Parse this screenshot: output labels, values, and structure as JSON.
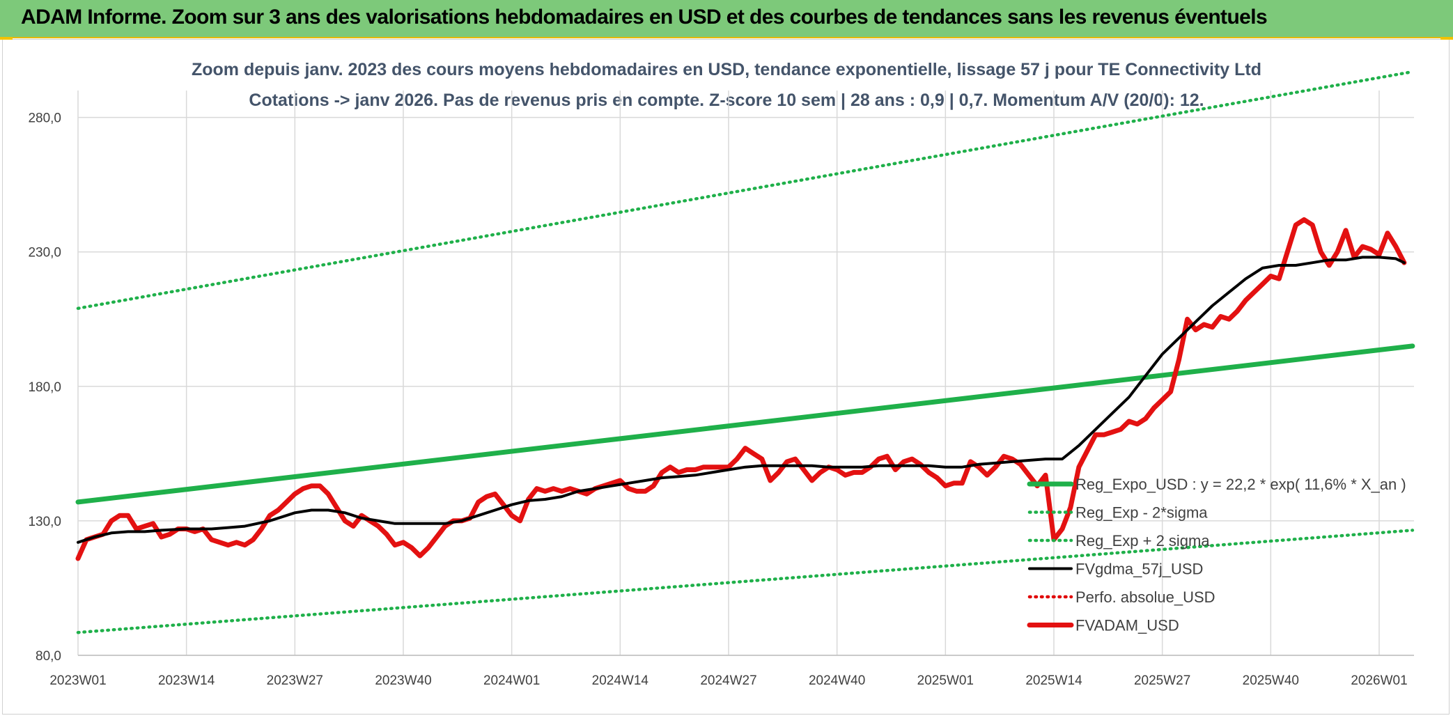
{
  "header": {
    "title": "ADAM Informe. Zoom sur 3 ans des valorisations hebdomadaires en USD et des courbes de tendances sans les revenus éventuels",
    "background": "#7dc97a"
  },
  "chart_data": {
    "type": "line",
    "title": "Zoom depuis janv. 2023 des cours moyens hebdomadaires en USD, tendance exponentielle, lissage 57 j pour TE Connectivity Ltd",
    "subtitle": "Cotations -> janv 2026. Pas de revenus pris en compte. Z-score 10 sem | 28 ans : 0,9 | 0,7. Momentum A/V (20/0): 12.",
    "xlabel": "",
    "ylabel": "",
    "ylim": [
      80,
      290
    ],
    "y_ticks": [
      "80,0",
      "130,0",
      "180,0",
      "230,0",
      "280,0"
    ],
    "y_tick_values": [
      80,
      130,
      180,
      230,
      280
    ],
    "x_ticks": [
      "2023W01",
      "2023W14",
      "2023W27",
      "2023W40",
      "2024W01",
      "2024W14",
      "2024W27",
      "2024W40",
      "2025W01",
      "2025W14",
      "2025W27",
      "2025W40",
      "2026W01"
    ],
    "x_tick_weeks": [
      0,
      13,
      26,
      39,
      52,
      65,
      78,
      91,
      104,
      117,
      130,
      143,
      156
    ],
    "x_max_week": 160,
    "grid": true,
    "legend_position": "bottom-right",
    "series": [
      {
        "name": "Reg_Expo_USD : y = 22,2 * exp( 11,6% *  X_an )",
        "color": "#1fb04a",
        "style": "solid-thick",
        "x": [
          0,
          160
        ],
        "values": [
          137,
          195
        ]
      },
      {
        "name": "Reg_Exp - 2*sigma",
        "color": "#1fb04a",
        "style": "dotted",
        "x": [
          0,
          160
        ],
        "values": [
          88.5,
          126.5
        ]
      },
      {
        "name": "Reg_Exp + 2 sigma",
        "color": "#1fb04a",
        "style": "dotted",
        "x": [
          0,
          160
        ],
        "values": [
          209,
          297
        ]
      },
      {
        "name": "FVgdma_57j_USD",
        "color": "#000000",
        "style": "solid",
        "x": [
          0,
          2,
          4,
          6,
          8,
          10,
          13,
          16,
          18,
          20,
          23,
          26,
          28,
          30,
          32,
          34,
          36,
          38,
          40,
          42,
          44,
          46,
          48,
          50,
          52,
          54,
          56,
          58,
          60,
          62,
          64,
          66,
          68,
          70,
          72,
          74,
          76,
          78,
          80,
          82,
          84,
          86,
          88,
          90,
          92,
          94,
          96,
          98,
          100,
          102,
          104,
          106,
          108,
          110,
          112,
          114,
          116,
          118,
          120,
          122,
          124,
          126,
          128,
          130,
          132,
          134,
          136,
          138,
          140,
          142,
          144,
          146,
          148,
          150,
          152,
          154,
          156,
          158,
          159
        ],
        "values": [
          122,
          124,
          125.5,
          126,
          126,
          126.5,
          127,
          127,
          127.5,
          128,
          130,
          133,
          134,
          134,
          133,
          131,
          130,
          129,
          129,
          129,
          129,
          130,
          132,
          134,
          136,
          137.5,
          138,
          139,
          141,
          142,
          143,
          144,
          145,
          146,
          146.5,
          147,
          148,
          149,
          150,
          150.5,
          150.5,
          150.5,
          150.5,
          150,
          150,
          150,
          150.5,
          150.5,
          150.5,
          150.5,
          150,
          150,
          151,
          151.5,
          152,
          152.5,
          153,
          153,
          158,
          164,
          170,
          176,
          184,
          192,
          198,
          204,
          210,
          215,
          220,
          224,
          225,
          225,
          226,
          227,
          227,
          228,
          228,
          227.5,
          226
        ]
      },
      {
        "name": "Perfo. absolue_USD",
        "color": "#e00000",
        "style": "dotted",
        "x": [],
        "values": []
      },
      {
        "name": "FVADAM_USD",
        "color": "#e31111",
        "style": "solid-thick",
        "x": [
          0,
          1,
          2,
          3,
          4,
          5,
          6,
          7,
          8,
          9,
          10,
          11,
          12,
          13,
          14,
          15,
          16,
          17,
          18,
          19,
          20,
          21,
          22,
          23,
          24,
          25,
          26,
          27,
          28,
          29,
          30,
          31,
          32,
          33,
          34,
          35,
          36,
          37,
          38,
          39,
          40,
          41,
          42,
          43,
          44,
          45,
          46,
          47,
          48,
          49,
          50,
          51,
          52,
          53,
          54,
          55,
          56,
          57,
          58,
          59,
          60,
          61,
          62,
          63,
          64,
          65,
          66,
          67,
          68,
          69,
          70,
          71,
          72,
          73,
          74,
          75,
          76,
          77,
          78,
          79,
          80,
          81,
          82,
          83,
          84,
          85,
          86,
          87,
          88,
          89,
          90,
          91,
          92,
          93,
          94,
          95,
          96,
          97,
          98,
          99,
          100,
          101,
          102,
          103,
          104,
          105,
          106,
          107,
          108,
          109,
          110,
          111,
          112,
          113,
          114,
          115,
          116,
          117,
          118,
          119,
          120,
          121,
          122,
          123,
          124,
          125,
          126,
          127,
          128,
          129,
          130,
          131,
          132,
          133,
          134,
          135,
          136,
          137,
          138,
          139,
          140,
          141,
          142,
          143,
          144,
          145,
          146,
          147,
          148,
          149,
          150,
          151,
          152,
          153,
          154,
          155,
          156,
          157,
          158,
          159
        ],
        "values": [
          116,
          123,
          124,
          125,
          130,
          132,
          132,
          127,
          128,
          129,
          124,
          125,
          127,
          127,
          126,
          127,
          123,
          122,
          121,
          122,
          121,
          123,
          127,
          132,
          134,
          137,
          140,
          142,
          143,
          143,
          140,
          135,
          130,
          128,
          132,
          130,
          128,
          125,
          121,
          122,
          120,
          117,
          120,
          124,
          128,
          130,
          130,
          131,
          137,
          139,
          140,
          136,
          132,
          130,
          138,
          142,
          141,
          142,
          141,
          142,
          141,
          140,
          142,
          143,
          144,
          145,
          142,
          141,
          141,
          143,
          148,
          150,
          148,
          149,
          149,
          150,
          150,
          150,
          150,
          153,
          157,
          155,
          153,
          145,
          148,
          152,
          153,
          149,
          145,
          148,
          150,
          149,
          147,
          148,
          148,
          150,
          153,
          154,
          149,
          152,
          153,
          151,
          148,
          146,
          143,
          144,
          144,
          152,
          150,
          147,
          150,
          154,
          153,
          151,
          147,
          143,
          147,
          123,
          127,
          135,
          150,
          156,
          162,
          162,
          163,
          164,
          167,
          166,
          168,
          172,
          175,
          178,
          190,
          205,
          201,
          203,
          202,
          206,
          205,
          208,
          212,
          215,
          218,
          221,
          220,
          230,
          240,
          242,
          240,
          230,
          225,
          230,
          238,
          228,
          232,
          231,
          229,
          237,
          232,
          226
        ]
      }
    ]
  }
}
